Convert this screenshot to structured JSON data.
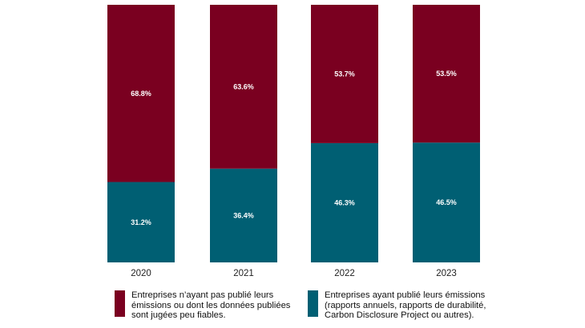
{
  "chart_data": {
    "type": "bar",
    "stacked": true,
    "categories": [
      "2020",
      "2021",
      "2022",
      "2023"
    ],
    "series": [
      {
        "name": "Entreprises ayant publié leurs émissions (rapports annuels, rapports de durabilité, Carbon Disclosure Project ou autres).",
        "values": [
          31.2,
          36.4,
          46.3,
          46.5
        ],
        "labels": [
          "31.2%",
          "36.4%",
          "46.3%",
          "46.5%"
        ],
        "color": "#005f73"
      },
      {
        "name": "Entreprises n'ayant pas publié leurs émissions ou dont les données publiées sont jugées peu fiables.",
        "values": [
          68.8,
          63.6,
          53.7,
          53.5
        ],
        "labels": [
          "68.8%",
          "63.6%",
          "53.7%",
          "53.5%"
        ],
        "color": "#7a0020"
      }
    ],
    "ylim": [
      0,
      100
    ],
    "grid": false,
    "legend": "bottom"
  },
  "legend": [
    {
      "text": "Entreprises n’ayant pas publié leurs émissions ou dont les données publiées sont jugées peu fiables.",
      "color": "#7a0020"
    },
    {
      "text": "Entreprises ayant publié leurs émissions (rapports annuels, rapports de durabilité, Carbon Disclosure Project ou autres).",
      "color": "#005f73"
    }
  ]
}
